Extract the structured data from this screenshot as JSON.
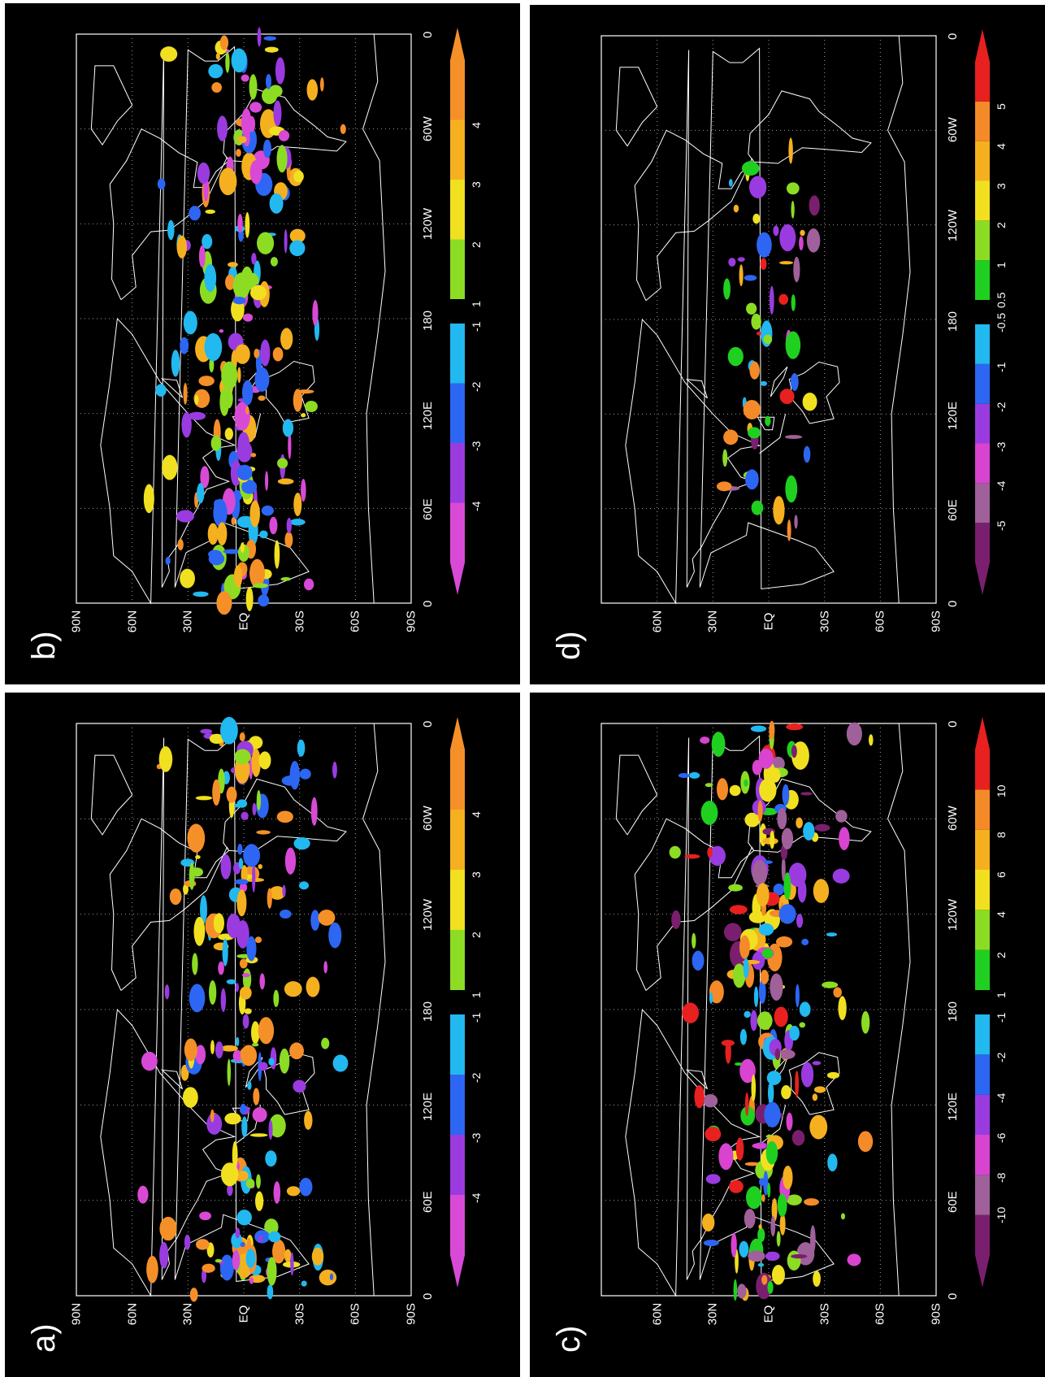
{
  "panels": [
    {
      "label": "a)",
      "lat_labels": [
        "90N",
        "60N",
        "30N",
        "EQ",
        "30S",
        "60S",
        "90S"
      ],
      "lon_labels": [
        "0",
        "60E",
        "120E",
        "180",
        "120W",
        "60W",
        "0"
      ],
      "colorbar": {
        "neg": {
          "labels": [
            "-4",
            "-3",
            "-2",
            "-1"
          ],
          "colors": [
            "#d84ad6",
            "#9a3be0",
            "#2c66f2",
            "#22b8f0"
          ]
        },
        "pos": {
          "labels": [
            "1",
            "2",
            "3",
            "4"
          ],
          "colors": [
            "#8cdc24",
            "#f1e020",
            "#f5b020",
            "#f59028"
          ]
        }
      }
    },
    {
      "label": "b)",
      "lat_labels": [
        "90N",
        "60N",
        "30N",
        "EQ",
        "30S",
        "60S",
        "90S"
      ],
      "lon_labels": [
        "0",
        "60E",
        "120E",
        "180",
        "120W",
        "60W",
        "0"
      ],
      "colorbar": {
        "neg": {
          "labels": [
            "-4",
            "-3",
            "-2",
            "-1"
          ],
          "colors": [
            "#d84ad6",
            "#9a3be0",
            "#2c66f2",
            "#22b8f0"
          ]
        },
        "pos": {
          "labels": [
            "1",
            "2",
            "3",
            "4"
          ],
          "colors": [
            "#8cdc24",
            "#f1e020",
            "#f5b020",
            "#f59028"
          ]
        }
      }
    },
    {
      "label": "c)",
      "lat_labels": [
        "60N",
        "30N",
        "EQ",
        "30S",
        "60S",
        "90S"
      ],
      "lon_labels": [
        "0",
        "60E",
        "120E",
        "180",
        "120W",
        "60W",
        "0"
      ],
      "colorbar": {
        "neg": {
          "labels": [
            "-10",
            "-8",
            "-6",
            "-4",
            "-2",
            "-1"
          ],
          "colors": [
            "#7a1f6e",
            "#a0609a",
            "#d843d0",
            "#9a3be0",
            "#2c66f2",
            "#22b8f0"
          ]
        },
        "pos": {
          "labels": [
            "1",
            "2",
            "4",
            "6",
            "8",
            "10"
          ],
          "colors": [
            "#20d020",
            "#8cdc24",
            "#f1e020",
            "#f5b020",
            "#f58a28",
            "#e82020"
          ]
        }
      }
    },
    {
      "label": "d)",
      "lat_labels": [
        "60N",
        "30N",
        "EQ",
        "30S",
        "60S",
        "90S"
      ],
      "lon_labels": [
        "0",
        "60E",
        "120E",
        "180",
        "120W",
        "60W",
        "0"
      ],
      "colorbar": {
        "neg": {
          "labels": [
            "-5",
            "-4",
            "-3",
            "-2",
            "-1",
            "-0.5"
          ],
          "colors": [
            "#7a1f6e",
            "#a0609a",
            "#d843d0",
            "#9a3be0",
            "#2c66f2",
            "#22b8f0"
          ]
        },
        "pos": {
          "labels": [
            "0.5",
            "1",
            "2",
            "3",
            "4",
            "5"
          ],
          "colors": [
            "#20d020",
            "#8cdc24",
            "#f1e020",
            "#f5b020",
            "#f58a28",
            "#e82020"
          ]
        }
      }
    }
  ],
  "colors": {
    "background": "#000000",
    "coastline": "#ffffff",
    "grid": "#9a9a9a"
  }
}
